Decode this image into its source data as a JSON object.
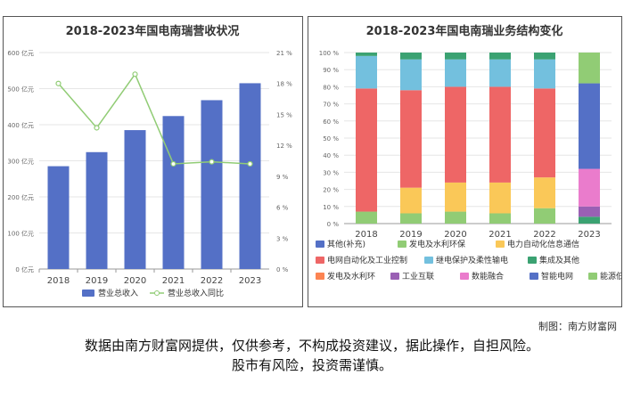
{
  "charts": [
    {
      "type": "bar+line",
      "title": "2018-2023年国电南瑞营收状况",
      "categories": [
        "2018",
        "2019",
        "2020",
        "2021",
        "2022",
        "2023"
      ],
      "y_left": {
        "ticks": [
          "0 亿元",
          "100 亿元",
          "200 亿元",
          "300 亿元",
          "400 亿元",
          "500 亿元",
          "600 亿元"
        ],
        "range": [
          0,
          600
        ]
      },
      "y_right": {
        "ticks": [
          "0 %",
          "3 %",
          "6 %",
          "9 %",
          "12 %",
          "15 %",
          "18 %",
          "21 %"
        ],
        "range": [
          0,
          21
        ]
      },
      "series": [
        {
          "name": "营业总收入",
          "kind": "bar",
          "color": "#5470c6",
          "values": [
            285,
            324,
            385,
            424,
            468,
            515
          ]
        },
        {
          "name": "营业总收入同比",
          "kind": "line",
          "color": "#91cc75",
          "values": [
            18.0,
            13.7,
            18.9,
            10.2,
            10.4,
            10.2
          ]
        }
      ],
      "grid": true,
      "legend": "bottom"
    },
    {
      "type": "stacked-bar",
      "title": "2018-2023年国电南瑞业务结构变化",
      "categories": [
        "2018",
        "2019",
        "2020",
        "2021",
        "2022",
        "2023"
      ],
      "y_ticks": [
        "0 %",
        "10 %",
        "20 %",
        "30 %",
        "40 %",
        "50 %",
        "60 %",
        "70 %",
        "80 %",
        "90 %",
        "100 %"
      ],
      "series": [
        {
          "name": "其他(补充)",
          "color": "#5470c6",
          "values": [
            0,
            0,
            0,
            0,
            0,
            0
          ]
        },
        {
          "name": "发电及水利环保",
          "color": "#91cc75",
          "values": [
            7,
            6,
            7,
            6,
            9,
            0
          ]
        },
        {
          "name": "电力自动化信息通信",
          "color": "#fac858",
          "values": [
            0,
            15,
            17,
            18,
            18,
            0
          ]
        },
        {
          "name": "电网自动化及工业控制",
          "color": "#ee6666",
          "values": [
            72,
            57,
            56,
            56,
            52,
            0
          ]
        },
        {
          "name": "继电保护及柔性输电",
          "color": "#73c0de",
          "values": [
            19,
            18,
            16,
            16,
            17,
            0
          ]
        },
        {
          "name": "集成及其他",
          "color": "#3ba272",
          "values": [
            2,
            4,
            4,
            4,
            4,
            0
          ]
        },
        {
          "name": "发电及水利环",
          "color": "#fc8452",
          "values": [
            0,
            0,
            0,
            0,
            0,
            0
          ]
        },
        {
          "name": "工业互联",
          "color": "#9a60b4",
          "values": [
            0,
            0,
            0,
            0,
            0,
            6
          ]
        },
        {
          "name": "数能融合",
          "color": "#ea7ccc",
          "values": [
            0,
            0,
            0,
            0,
            0,
            22
          ]
        },
        {
          "name": "智能电网",
          "color": "#5470c6",
          "values": [
            0,
            0,
            0,
            0,
            0,
            50
          ]
        },
        {
          "name": "能源低碳",
          "color": "#91cc75",
          "values": [
            0,
            0,
            0,
            0,
            0,
            18
          ]
        }
      ],
      "extra_2023": {
        "name": "集成及其他",
        "color": "#3ba272",
        "value": 4
      },
      "grid": true,
      "legend": "bottom"
    }
  ],
  "credit": "制图：南方财富网",
  "disclaimer_line1": "数据由南方财富网提供，仅供参考，不构成投资建议，据此操作，自担风险。",
  "disclaimer_line2": "股市有风险，投资需谨慎。"
}
